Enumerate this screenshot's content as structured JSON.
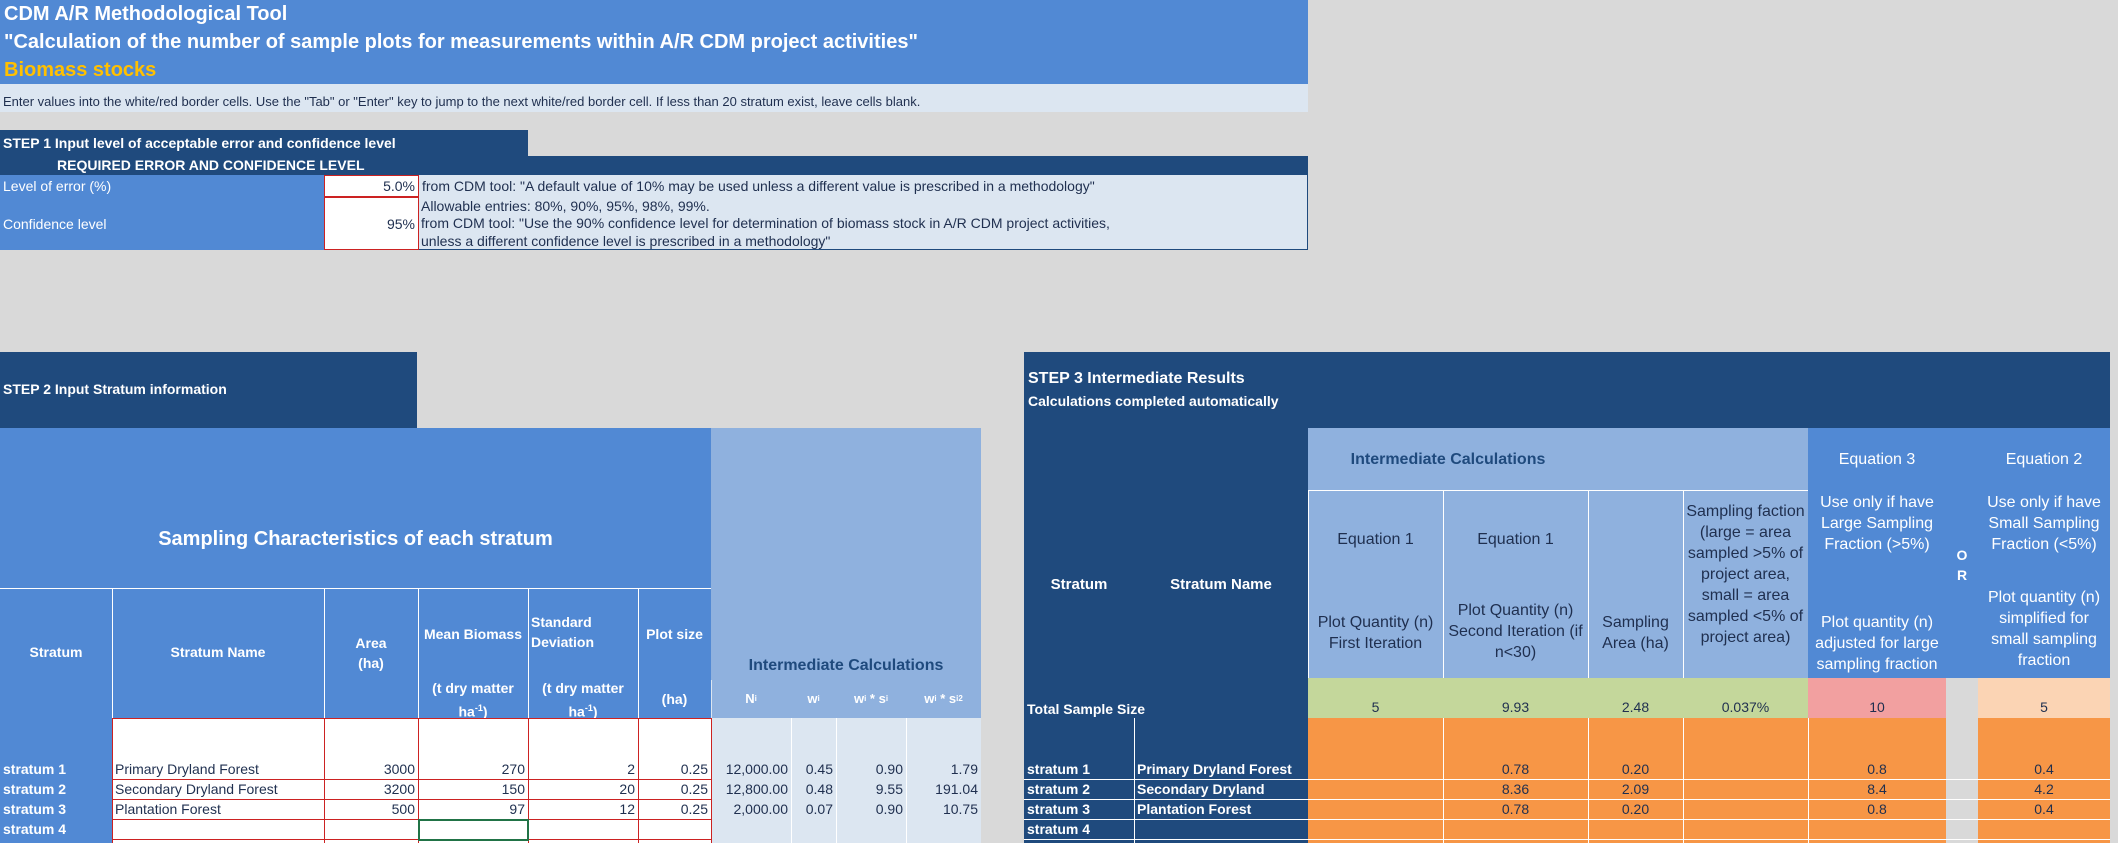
{
  "header": {
    "title": "CDM A/R Methodological Tool",
    "subtitle": "\"Calculation of the number of sample plots for measurements within A/R CDM project activities\"",
    "section": "Biomass stocks",
    "instructions": "Enter values into the white/red border cells.  Use the \"Tab\" or \"Enter\" key to jump to the next white/red border cell. If less than 20 stratum exist, leave cells blank."
  },
  "step1": {
    "title": "STEP 1 Input level of acceptable error and confidence level",
    "required_label": "REQUIRED ERROR AND CONFIDENCE LEVEL",
    "error_label": "Level of error (%)",
    "error_value": "5.0%",
    "error_note": "from CDM tool: \"A default value of 10% may be used unless a different value is prescribed in a methodology\"",
    "confidence_label": "Confidence level",
    "confidence_value": "95%",
    "confidence_note1": "Allowable entries: 80%, 90%, 95%, 98%, 99%.",
    "confidence_note2": "from CDM tool: \"Use the 90% confidence level for determination of biomass stock in A/R CDM project activities,",
    "confidence_note3": "unless a different confidence level is prescribed in a methodology\""
  },
  "step2": {
    "title": "STEP 2 Input Stratum information",
    "sampling_title": "Sampling Characteristics of each stratum",
    "col_stratum": "Stratum",
    "col_name": "Stratum Name",
    "col_area_1": "Area",
    "col_area_2": "(ha)",
    "col_mean": "Mean Biomass",
    "col_sd_1": "Standard",
    "col_sd_2": "Deviation",
    "col_plot": "Plot size",
    "unit_tdm": "(t dry matter",
    "unit_ha_1": "ha",
    "unit_sup": "-1",
    "unit_ha_2": ")",
    "unit_plot": "(ha)",
    "intermediate_title": "Intermediate Calculations",
    "ic_n": "N",
    "ic_w": "w",
    "ic_ws": "w",
    "ic_ws2": "w",
    "sub_i": "i",
    "rows": [
      {
        "stratum": "stratum 1",
        "name": "Primary Dryland Forest",
        "area": "3000",
        "mean": "270",
        "sd": "2",
        "plot": "0.25",
        "N": "12,000.00",
        "w": "0.45",
        "ws": "0.90",
        "ws2": "1.79"
      },
      {
        "stratum": "stratum 2",
        "name": "Secondary Dryland Forest",
        "area": "3200",
        "mean": "150",
        "sd": "20",
        "plot": "0.25",
        "N": "12,800.00",
        "w": "0.48",
        "ws": "9.55",
        "ws2": "191.04"
      },
      {
        "stratum": "stratum 3",
        "name": "Plantation Forest",
        "area": "500",
        "mean": "97",
        "sd": "12",
        "plot": "0.25",
        "N": "2,000.00",
        "w": "0.07",
        "ws": "0.90",
        "ws2": "10.75"
      },
      {
        "stratum": "stratum 4",
        "name": "",
        "area": "",
        "mean": "",
        "sd": "",
        "plot": "",
        "N": "",
        "w": "",
        "ws": "",
        "ws2": ""
      }
    ]
  },
  "step3": {
    "title": "STEP 3 Intermediate Results",
    "subtitle": "Calculations completed automatically",
    "intermediate_title": "Intermediate Calculations",
    "col_stratum": "Stratum",
    "col_name": "Stratum Name",
    "eq1": "Equation 1",
    "eq1b": "Equation 1",
    "eq3": "Equation 3",
    "eq2": "Equation 2",
    "or_label": "O R",
    "eq3_desc": "Use only if have Large Sampling Fraction (>5%)",
    "eq2_desc": "Use only if have Small Sampling Fraction (<5%)",
    "h_first": "Plot Quantity (n) First Iteration",
    "h_second": "Plot Quantity (n) Second Iteration (if n<30)",
    "h_area": "Sampling Area (ha)",
    "h_faction": "Sampling faction (large = area sampled >5% of project area, small = area sampled <5% of project area)",
    "h_large": "Plot quantity (n) adjusted for large sampling fraction",
    "h_small": "Plot quantity (n) simplified for small sampling fraction",
    "total_label": "Total Sample Size",
    "totals": {
      "first": "5",
      "second": "9.93",
      "area": "2.48",
      "faction": "0.037%",
      "large": "10",
      "small": "5"
    },
    "rows": [
      {
        "stratum": "stratum 1",
        "name": "Primary Dryland Forest",
        "second": "0.78",
        "area": "0.20",
        "large": "0.8",
        "small": "0.4"
      },
      {
        "stratum": "stratum 2",
        "name": "Secondary Dryland",
        "second": "8.36",
        "area": "2.09",
        "large": "8.4",
        "small": "4.2"
      },
      {
        "stratum": "stratum 3",
        "name": "Plantation Forest",
        "second": "0.78",
        "area": "0.20",
        "large": "0.8",
        "small": "0.4"
      },
      {
        "stratum": "stratum 4",
        "name": "",
        "second": "",
        "area": "",
        "large": "",
        "small": ""
      }
    ]
  },
  "colors": {
    "header_blue": "#5189d4",
    "dark_blue": "#1f4a7d",
    "light_blue": "#dce6f1",
    "orange": "#f79646",
    "green": "#c4d79b",
    "pink": "#f2a0a0",
    "peach": "#fbd4b4",
    "title_yellow": "#ffc000"
  }
}
